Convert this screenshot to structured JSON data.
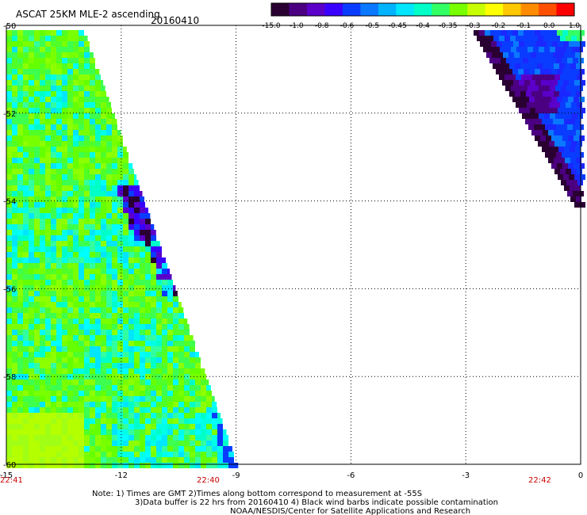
{
  "title": "ASCAT 25KM MLE-2 ascending",
  "date": "20160410",
  "colorbar": {
    "labels": [
      "-15.0",
      "-1.0",
      "-0.8",
      "-0.6",
      "-0.5",
      "-0.45",
      "-0.4",
      "-0.35",
      "-0.3",
      "-0.2",
      "-0.1",
      "0.0",
      "1.0"
    ],
    "colors": [
      "#2a0033",
      "#4b0082",
      "#5a00c8",
      "#3a00ff",
      "#0a3cff",
      "#0a78ff",
      "#00b4ff",
      "#00e6ff",
      "#00ffc8",
      "#32ff64",
      "#78ff00",
      "#c8ff00",
      "#ffff00",
      "#ffc800",
      "#ff8c00",
      "#ff5000",
      "#ff0000"
    ]
  },
  "axes": {
    "lon_ticks": [
      "-15",
      "-12",
      "-9",
      "-6",
      "-3",
      "0"
    ],
    "lat_ticks": [
      "-50",
      "-52",
      "-54",
      "-56",
      "-58",
      "-60"
    ],
    "lon_range": [
      -15,
      0
    ],
    "lat_range": [
      -50,
      -60
    ]
  },
  "times": [
    "22:41",
    "22:40",
    "22:42"
  ],
  "time_color": "#c80000",
  "notes": [
    "Note: 1) Times are GMT 2)Times along bottom correspond to measurement at -55S",
    "3)Data buffer is 22 hrs from 20160410 4) Black wind barbs indicate possible contamination",
    "NOAA/NESDIS/Center for Satellite Applications and Research"
  ]
}
